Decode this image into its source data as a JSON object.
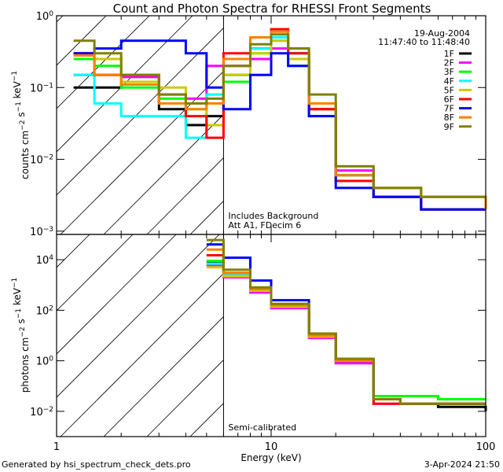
{
  "chart_data": [
    {
      "type": "line",
      "panel": "top",
      "title": "Count and Photon Spectra for RHESSI Front Segments",
      "ylabel": "counts cm^-2 s^-1 keV^-1",
      "xlabel": "",
      "xscale": "log",
      "yscale": "log",
      "xlim": [
        1,
        100
      ],
      "ylim": [
        0.0009,
        1
      ],
      "yticks": [
        {
          "v": 1,
          "label": "10^0"
        },
        {
          "v": 0.1,
          "label": "10^-1"
        },
        {
          "v": 0.01,
          "label": "10^-2"
        },
        {
          "v": 0.001,
          "label": "10^-3"
        }
      ],
      "date": "19-Aug-2004",
      "time_range": "11:47:40 to 11:48:40",
      "annotations": [
        "Includes Background",
        "Att A1, FDecim 6"
      ],
      "threshold_energy": 6,
      "legend_position": "top-right",
      "series": [
        {
          "name": "1F",
          "color": "#000000",
          "x": [
            1.2,
            1.5,
            2,
            3,
            4,
            5,
            6,
            8,
            10,
            12,
            15,
            20,
            30,
            50,
            100
          ],
          "y": [
            0.1,
            0.1,
            0.12,
            0.05,
            0.03,
            0.04,
            0.15,
            0.35,
            0.5,
            0.3,
            0.05,
            0.006,
            0.003,
            0.002,
            0.002
          ]
        },
        {
          "name": "2F",
          "color": "#ff00ff",
          "x": [
            1.2,
            1.5,
            2,
            3,
            4,
            5,
            6,
            8,
            10,
            12,
            15,
            20,
            30,
            50,
            100
          ],
          "y": [
            0.15,
            0.15,
            0.14,
            0.08,
            0.07,
            0.2,
            0.2,
            0.25,
            0.35,
            0.25,
            0.06,
            0.007,
            0.003,
            0.002,
            0.002
          ]
        },
        {
          "name": "3F",
          "color": "#00ff00",
          "x": [
            1.2,
            1.5,
            2,
            3,
            4,
            5,
            6,
            8,
            10,
            12,
            15,
            20,
            30,
            50,
            100
          ],
          "y": [
            0.25,
            0.2,
            0.1,
            0.07,
            0.05,
            0.06,
            0.12,
            0.3,
            0.45,
            0.2,
            0.04,
            0.005,
            0.004,
            0.003,
            0.003
          ]
        },
        {
          "name": "4F",
          "color": "#00ffff",
          "x": [
            1.2,
            1.5,
            2,
            3,
            4,
            5,
            6,
            8,
            10,
            12,
            15,
            20,
            30,
            50,
            100
          ],
          "y": [
            0.15,
            0.06,
            0.04,
            0.04,
            0.02,
            0.08,
            0.15,
            0.35,
            0.5,
            0.3,
            0.06,
            0.006,
            0.003,
            0.002,
            0.002
          ]
        },
        {
          "name": "5F",
          "color": "#cccc00",
          "x": [
            1.2,
            1.5,
            2,
            3,
            4,
            5,
            6,
            8,
            10,
            12,
            15,
            20,
            30,
            50,
            100
          ],
          "y": [
            0.3,
            0.25,
            0.12,
            0.1,
            0.06,
            0.03,
            0.15,
            0.3,
            0.45,
            0.25,
            0.05,
            0.005,
            0.003,
            0.002,
            0.002
          ]
        },
        {
          "name": "6F",
          "color": "#ff0000",
          "x": [
            1.2,
            1.5,
            2,
            3,
            4,
            5,
            6,
            8,
            10,
            12,
            15,
            20,
            30,
            50,
            100
          ],
          "y": [
            0.3,
            0.15,
            0.15,
            0.06,
            0.04,
            0.02,
            0.3,
            0.5,
            0.65,
            0.3,
            0.05,
            0.005,
            0.003,
            0.002,
            0.002
          ]
        },
        {
          "name": "7F",
          "color": "#0000ff",
          "x": [
            1.2,
            1.5,
            2,
            3,
            4,
            5,
            6,
            8,
            10,
            12,
            15,
            20,
            30,
            50,
            100
          ],
          "y": [
            0.3,
            0.35,
            0.45,
            0.45,
            0.3,
            0.1,
            0.05,
            0.15,
            0.3,
            0.2,
            0.04,
            0.004,
            0.003,
            0.002,
            0.002
          ]
        },
        {
          "name": "8F",
          "color": "#ff8000",
          "x": [
            1.2,
            1.5,
            2,
            3,
            4,
            5,
            6,
            8,
            10,
            12,
            15,
            20,
            30,
            50,
            100
          ],
          "y": [
            0.28,
            0.15,
            0.11,
            0.06,
            0.05,
            0.06,
            0.25,
            0.5,
            0.6,
            0.35,
            0.06,
            0.006,
            0.004,
            0.003,
            0.002
          ]
        },
        {
          "name": "9F",
          "color": "#808000",
          "x": [
            1.2,
            1.5,
            2,
            3,
            4,
            5,
            6,
            8,
            10,
            12,
            15,
            20,
            30,
            50,
            100
          ],
          "y": [
            0.45,
            0.3,
            0.15,
            0.08,
            0.06,
            0.07,
            0.2,
            0.4,
            0.55,
            0.35,
            0.08,
            0.008,
            0.004,
            0.003,
            0.003
          ]
        }
      ]
    },
    {
      "type": "line",
      "panel": "bottom",
      "title": "",
      "ylabel": "photons cm^-2 s^-1 keV^-1",
      "xlabel": "Energy (keV)",
      "xscale": "log",
      "yscale": "log",
      "xlim": [
        1,
        100
      ],
      "ylim": [
        0.001,
        100000
      ],
      "xticks": [
        {
          "v": 1,
          "label": "1"
        },
        {
          "v": 10,
          "label": "10"
        },
        {
          "v": 100,
          "label": "100"
        }
      ],
      "yticks": [
        {
          "v": 10000,
          "label": "10^4"
        },
        {
          "v": 100,
          "label": "10^2"
        },
        {
          "v": 1,
          "label": "10^0"
        },
        {
          "v": 0.01,
          "label": "10^-2"
        }
      ],
      "annotations": [
        "Semi-calibrated"
      ],
      "threshold_energy": 6,
      "series": [
        {
          "name": "1F",
          "color": "#000000",
          "x": [
            5,
            6,
            8,
            10,
            15,
            20,
            30,
            40,
            60,
            100
          ],
          "y": [
            8000,
            2500,
            600,
            150,
            10,
            1,
            0.03,
            0.02,
            0.015,
            0.01
          ]
        },
        {
          "name": "2F",
          "color": "#ff00ff",
          "x": [
            5,
            6,
            8,
            10,
            15,
            20,
            30,
            40,
            60,
            100
          ],
          "y": [
            6000,
            2000,
            500,
            120,
            8,
            0.8,
            0.02,
            0.02,
            0.02,
            0.02
          ]
        },
        {
          "name": "3F",
          "color": "#00ff00",
          "x": [
            5,
            6,
            8,
            10,
            15,
            20,
            30,
            40,
            60,
            100
          ],
          "y": [
            9000,
            2500,
            650,
            150,
            10,
            1.2,
            0.04,
            0.04,
            0.03,
            0.03
          ]
        },
        {
          "name": "4F",
          "color": "#00ffff",
          "x": [
            5,
            6,
            8,
            10,
            15,
            20,
            30,
            40,
            60,
            100
          ],
          "y": [
            7000,
            2500,
            600,
            140,
            10,
            1,
            0.03,
            0.02,
            0.02,
            0.02
          ]
        },
        {
          "name": "5F",
          "color": "#cccc00",
          "x": [
            5,
            6,
            8,
            10,
            15,
            20,
            30,
            40,
            60,
            100
          ],
          "y": [
            5000,
            2200,
            600,
            140,
            9,
            1,
            0.03,
            0.02,
            0.02,
            0.02
          ]
        },
        {
          "name": "6F",
          "color": "#ff0000",
          "x": [
            5,
            6,
            8,
            10,
            15,
            20,
            30,
            40,
            60,
            100
          ],
          "y": [
            15000,
            3000,
            700,
            160,
            10,
            1,
            0.02,
            0.02,
            0.02,
            0.02
          ]
        },
        {
          "name": "7F",
          "color": "#0000ff",
          "x": [
            5,
            6,
            8,
            10,
            15,
            20,
            30,
            40,
            60,
            100
          ],
          "y": [
            40000,
            12000,
            1500,
            250,
            12,
            1,
            0.03,
            0.02,
            0.02,
            0.02
          ]
        },
        {
          "name": "8F",
          "color": "#ff8000",
          "x": [
            5,
            6,
            8,
            10,
            15,
            20,
            30,
            40,
            60,
            100
          ],
          "y": [
            25000,
            3000,
            700,
            160,
            10,
            1,
            0.03,
            0.02,
            0.02,
            0.02
          ]
        },
        {
          "name": "9F",
          "color": "#808000",
          "x": [
            5,
            6,
            8,
            10,
            15,
            20,
            30,
            40,
            60,
            100
          ],
          "y": [
            60000,
            4000,
            800,
            180,
            12,
            1.2,
            0.03,
            0.02,
            0.02,
            0.02
          ]
        }
      ]
    }
  ],
  "footer": {
    "generated_by": "Generated by hsi_spectrum_check_dets.pro",
    "timestamp": "3-Apr-2024 21:50"
  }
}
